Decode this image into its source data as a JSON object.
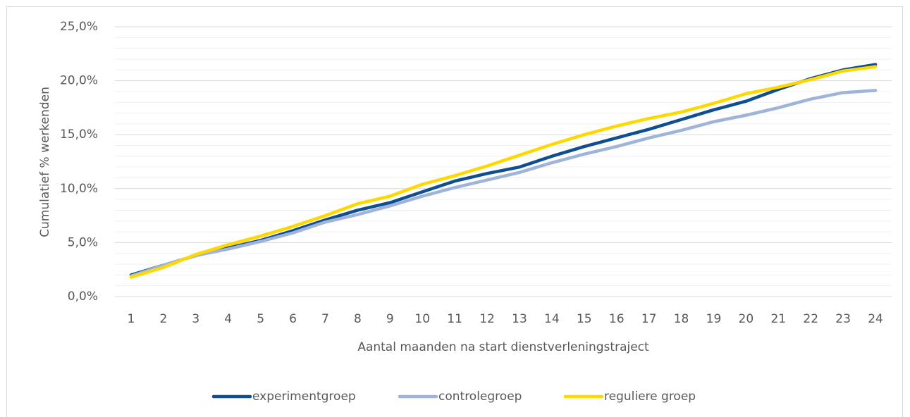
{
  "chart_data": {
    "type": "line",
    "y_label": "Cumulatief % werkenden",
    "x_label": "Aantal maanden na start dienstverleningstraject",
    "categories": [
      "1",
      "2",
      "3",
      "4",
      "5",
      "6",
      "7",
      "8",
      "9",
      "10",
      "11",
      "12",
      "13",
      "14",
      "15",
      "16",
      "17",
      "18",
      "19",
      "20",
      "21",
      "22",
      "23",
      "24"
    ],
    "series": [
      {
        "name": "experimentgroep",
        "color": "#0f4f8f",
        "values": [
          2.0,
          2.9,
          3.8,
          4.5,
          5.2,
          6.1,
          7.1,
          8.0,
          8.7,
          9.7,
          10.7,
          11.4,
          12.0,
          13.0,
          13.9,
          14.7,
          15.5,
          16.4,
          17.3,
          18.1,
          19.2,
          20.2,
          21.0,
          21.5
        ]
      },
      {
        "name": "controlegroep",
        "color": "#a0b4da",
        "values": [
          1.9,
          2.9,
          3.8,
          4.4,
          5.1,
          5.9,
          6.9,
          7.6,
          8.4,
          9.3,
          10.1,
          10.8,
          11.5,
          12.4,
          13.2,
          13.9,
          14.7,
          15.4,
          16.2,
          16.8,
          17.5,
          18.3,
          18.9,
          19.1
        ]
      },
      {
        "name": "reguliere groep",
        "color": "#ffd800",
        "values": [
          1.8,
          2.7,
          3.9,
          4.8,
          5.6,
          6.5,
          7.5,
          8.6,
          9.3,
          10.4,
          11.2,
          12.1,
          13.1,
          14.1,
          15.0,
          15.8,
          16.5,
          17.1,
          17.9,
          18.8,
          19.4,
          20.1,
          20.9,
          21.3
        ]
      }
    ],
    "ylim": [
      0,
      25
    ],
    "yticks": [
      {
        "value": 0,
        "label": "0,0%"
      },
      {
        "value": 5,
        "label": "5,0%"
      },
      {
        "value": 10,
        "label": "10,0%"
      },
      {
        "value": 15,
        "label": "15,0%"
      },
      {
        "value": 20,
        "label": "20,0%"
      },
      {
        "value": 25,
        "label": "25,0%"
      }
    ],
    "minor_yticks": [
      1,
      2,
      3,
      4,
      6,
      7,
      8,
      9,
      11,
      12,
      13,
      14,
      16,
      17,
      18,
      19,
      21,
      22,
      23,
      24
    ],
    "grid": true,
    "legend": "bottom"
  }
}
